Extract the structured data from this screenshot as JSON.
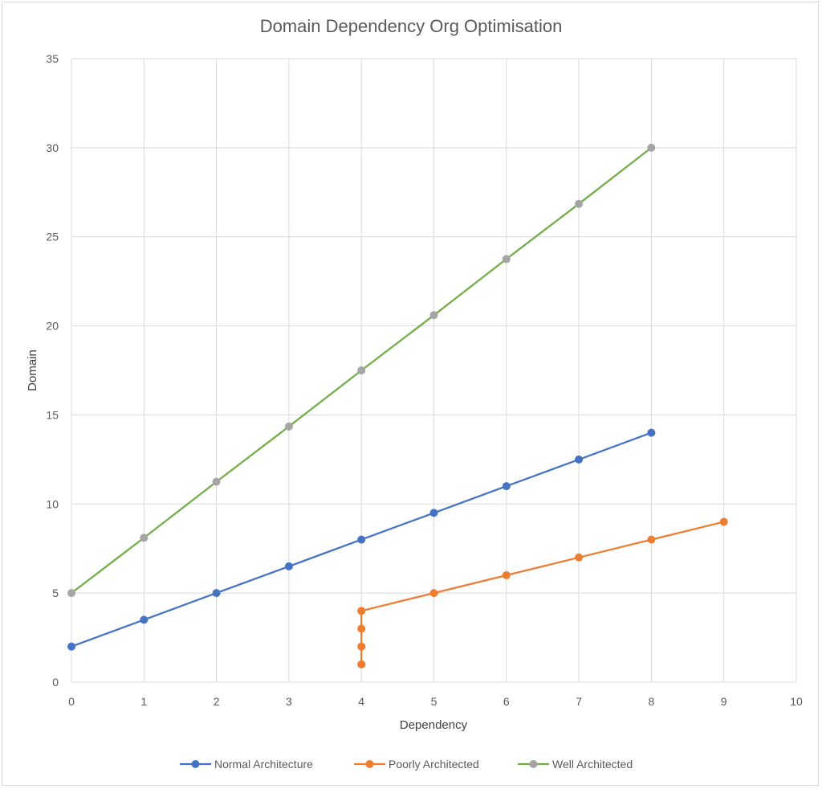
{
  "chart_data": {
    "type": "line",
    "title": "Domain Dependency Org Optimisation",
    "xlabel": "Dependency",
    "ylabel": "Domain",
    "xlim": [
      0,
      10
    ],
    "ylim": [
      0,
      35
    ],
    "x_ticks": [
      0,
      1,
      2,
      3,
      4,
      5,
      6,
      7,
      8,
      9,
      10
    ],
    "y_ticks": [
      0,
      5,
      10,
      15,
      20,
      25,
      30,
      35
    ],
    "grid": true,
    "legend_position": "bottom",
    "series": [
      {
        "name": "Normal Architecture",
        "line_color": "#4472c4",
        "marker_color": "#4472c4",
        "points": [
          [
            0,
            2
          ],
          [
            1,
            3.5
          ],
          [
            2,
            5
          ],
          [
            3,
            6.5
          ],
          [
            4,
            8
          ],
          [
            5,
            9.5
          ],
          [
            6,
            11
          ],
          [
            7,
            12.5
          ],
          [
            8,
            14
          ]
        ]
      },
      {
        "name": "Poorly Architected",
        "line_color": "#ed7d31",
        "marker_color": "#ed7d31",
        "points": [
          [
            4,
            1
          ],
          [
            4,
            2
          ],
          [
            4,
            3
          ],
          [
            4,
            4
          ],
          [
            5,
            5
          ],
          [
            6,
            6
          ],
          [
            7,
            7
          ],
          [
            8,
            8
          ],
          [
            9,
            9
          ]
        ]
      },
      {
        "name": "Well Architected",
        "line_color": "#70ad47",
        "marker_color": "#a5a5a5",
        "points": [
          [
            0,
            5
          ],
          [
            1,
            8.1
          ],
          [
            2,
            11.25
          ],
          [
            3,
            14.35
          ],
          [
            4,
            17.5
          ],
          [
            5,
            20.6
          ],
          [
            6,
            23.75
          ],
          [
            7,
            26.85
          ],
          [
            8,
            30
          ]
        ]
      }
    ]
  }
}
